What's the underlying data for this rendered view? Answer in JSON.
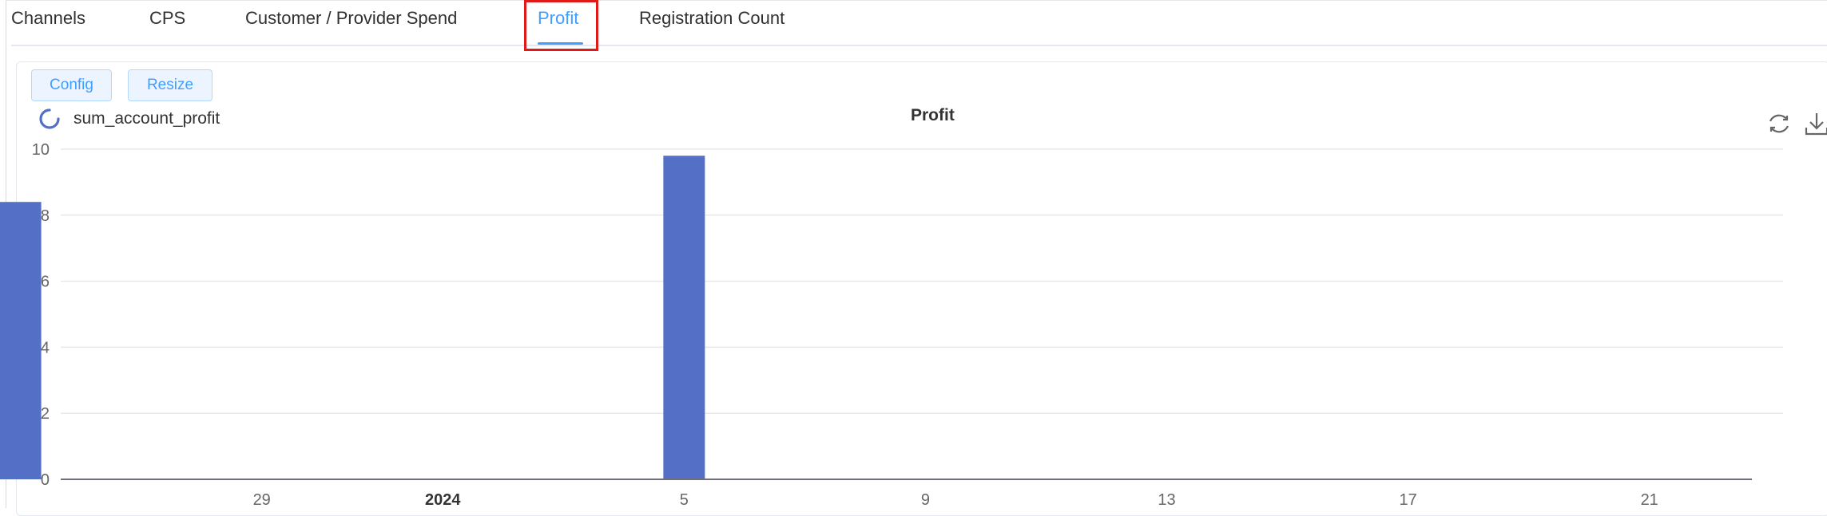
{
  "tabs": [
    {
      "label": "Channels",
      "active": false
    },
    {
      "label": "CPS",
      "active": false
    },
    {
      "label": "Customer / Provider Spend",
      "active": false
    },
    {
      "label": "Profit",
      "active": true
    },
    {
      "label": "Registration Count",
      "active": false
    }
  ],
  "toolbar": {
    "config_label": "Config",
    "resize_label": "Resize"
  },
  "chart_header": {
    "legend_label": "sum_account_profit",
    "title": "Profit",
    "refresh_icon": "refresh-icon",
    "download_icon": "download-icon"
  },
  "colors": {
    "accent": "#409eff",
    "bar": "#5470c6",
    "highlight": "#e01919"
  },
  "chart_data": {
    "type": "bar",
    "title": "Profit",
    "series": [
      {
        "name": "sum_account_profit",
        "points": [
          {
            "x": "2023-12-25",
            "y": 8.4
          },
          {
            "x": "2024-01-05",
            "y": 9.8
          }
        ]
      }
    ],
    "x_axis": {
      "type": "time",
      "range": [
        "2023-12-24",
        "2024-01-23"
      ],
      "tick_labels": [
        "29",
        "2024",
        "5",
        "9",
        "13",
        "17",
        "21"
      ],
      "tick_dates": [
        "2023-12-29",
        "2024-01-01",
        "2024-01-05",
        "2024-01-09",
        "2024-01-13",
        "2024-01-17",
        "2024-01-21"
      ]
    },
    "y_axis": {
      "range": [
        0,
        10
      ],
      "ticks": [
        0,
        2,
        4,
        6,
        8,
        10
      ]
    },
    "grid": true,
    "legend_position": "top-left"
  }
}
